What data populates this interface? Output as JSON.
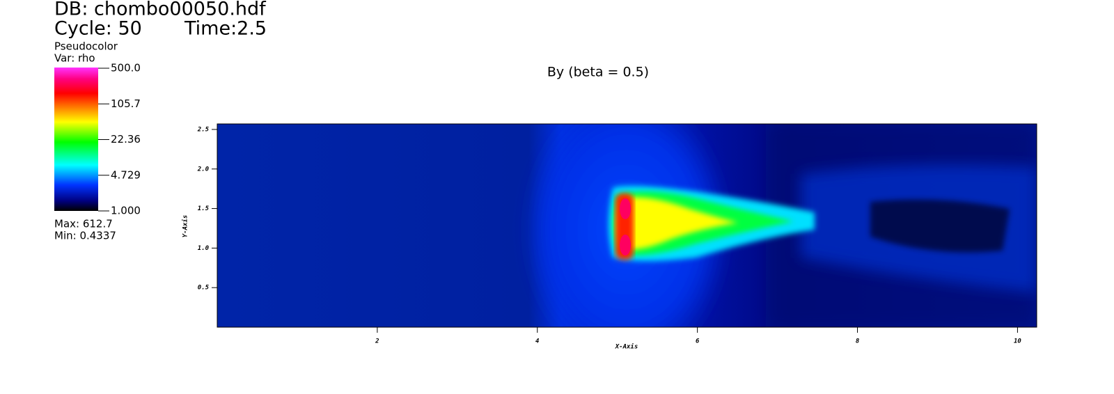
{
  "header": {
    "db": "DB: chombo00050.hdf",
    "cycle": "Cycle: 50",
    "time": "Time:2.5"
  },
  "legend": {
    "plot": "Pseudocolor",
    "var": "Var: rho",
    "ticks": [
      "500.0",
      "105.7",
      "22.36",
      "4.729",
      "1.000"
    ],
    "max": "Max: 612.7",
    "min": "Min: 0.4337"
  },
  "plot": {
    "title": "By (beta = 0.5)",
    "x_label": "X-Axis",
    "y_label": "Y-Axis",
    "xlim": [
      0,
      10.24
    ],
    "ylim": [
      0,
      2.57
    ],
    "xticks": [
      2,
      4,
      6,
      8,
      10
    ],
    "yticks": [
      {
        "value": 0.5,
        "label": "0.5"
      },
      {
        "value": 1.0,
        "label": "1.0"
      },
      {
        "value": 1.5,
        "label": "1.5"
      },
      {
        "value": 2.0,
        "label": "2.0"
      },
      {
        "value": 2.5,
        "label": "2.5"
      }
    ]
  }
}
